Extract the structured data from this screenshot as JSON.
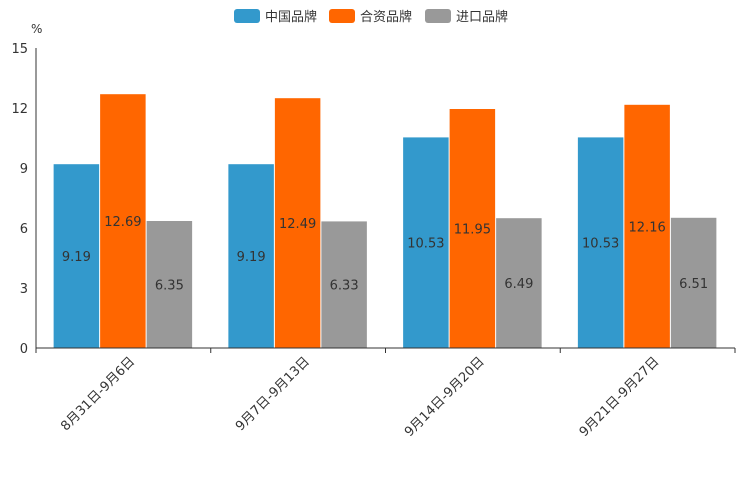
{
  "chart_data": {
    "type": "bar",
    "title": "",
    "unit_label": "%",
    "xlabel": "",
    "ylabel": "%",
    "ylim": [
      0,
      15
    ],
    "yticks": [
      0,
      3,
      6,
      9,
      12,
      15
    ],
    "grid": false,
    "legend_position": "top-center",
    "categories": [
      "8月31日-9月6日",
      "9月7日-9月13日",
      "9月14日-9月20日",
      "9月21日-9月27日"
    ],
    "series": [
      {
        "name": "中国品牌",
        "color": "#3399cc",
        "values": [
          9.19,
          9.19,
          10.53,
          10.53
        ]
      },
      {
        "name": "合资品牌",
        "color": "#ff6600",
        "values": [
          12.69,
          12.49,
          11.95,
          12.16
        ]
      },
      {
        "name": "进口品牌",
        "color": "#999999",
        "values": [
          6.35,
          6.33,
          6.49,
          6.51
        ]
      }
    ]
  }
}
